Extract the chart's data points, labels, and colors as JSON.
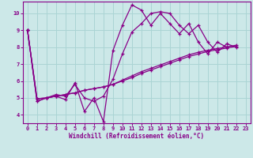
{
  "xlabel": "Windchill (Refroidissement éolien,°C)",
  "bg_color": "#cce8e8",
  "grid_color": "#aad4d4",
  "line_color": "#880088",
  "xlim": [
    -0.5,
    23.5
  ],
  "ylim": [
    3.5,
    10.7
  ],
  "xticks": [
    0,
    1,
    2,
    3,
    4,
    5,
    6,
    7,
    8,
    9,
    10,
    11,
    12,
    13,
    14,
    15,
    16,
    17,
    18,
    19,
    20,
    21,
    22,
    23
  ],
  "yticks": [
    4,
    5,
    6,
    7,
    8,
    9,
    10
  ],
  "series_x": [
    [
      0,
      1,
      2,
      3,
      4,
      5,
      6,
      7,
      8,
      9,
      10,
      11,
      12,
      13,
      14,
      15,
      16,
      17,
      18,
      19,
      20,
      21
    ],
    [
      0,
      1,
      2,
      3,
      4,
      5,
      6,
      7,
      8,
      9,
      10,
      11,
      12,
      13,
      14,
      15,
      16,
      17,
      18,
      19,
      20,
      21,
      22
    ],
    [
      0,
      1,
      2,
      3,
      4,
      5,
      6,
      7,
      8,
      9,
      10,
      11,
      12,
      13,
      14,
      15,
      16,
      17,
      18,
      19,
      20,
      21,
      22
    ],
    [
      0,
      1,
      2,
      3,
      4,
      5,
      6,
      7,
      8,
      9,
      10,
      11,
      12,
      13,
      14,
      15,
      16,
      17,
      18,
      19,
      20,
      21,
      22
    ]
  ],
  "series_y": [
    [
      9.0,
      4.8,
      5.0,
      5.1,
      4.9,
      5.9,
      4.2,
      5.0,
      3.6,
      7.8,
      9.3,
      10.5,
      10.2,
      9.3,
      10.0,
      9.4,
      8.8,
      9.4,
      8.3,
      7.6,
      8.3,
      8.0
    ],
    [
      9.0,
      4.8,
      5.0,
      5.2,
      5.1,
      5.8,
      5.0,
      4.8,
      5.1,
      6.1,
      7.6,
      8.9,
      9.4,
      10.0,
      10.1,
      10.0,
      9.3,
      8.8,
      9.3,
      8.3,
      7.7,
      8.2,
      8.0
    ],
    [
      9.0,
      4.95,
      5.0,
      5.1,
      5.2,
      5.3,
      5.45,
      5.55,
      5.65,
      5.8,
      6.0,
      6.2,
      6.45,
      6.65,
      6.85,
      7.05,
      7.25,
      7.45,
      7.6,
      7.75,
      7.85,
      7.95,
      8.05
    ],
    [
      9.0,
      4.95,
      5.0,
      5.1,
      5.2,
      5.3,
      5.45,
      5.55,
      5.65,
      5.8,
      6.05,
      6.3,
      6.55,
      6.75,
      6.95,
      7.15,
      7.35,
      7.55,
      7.7,
      7.82,
      7.92,
      8.02,
      8.12
    ]
  ]
}
